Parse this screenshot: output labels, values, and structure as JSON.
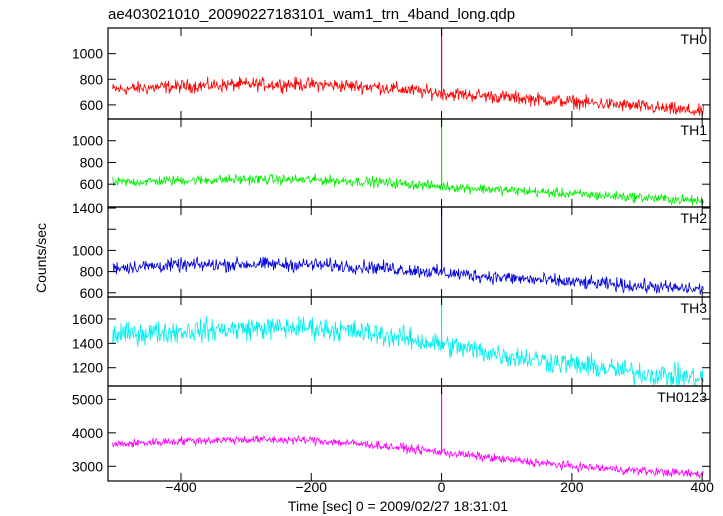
{
  "chart_data": {
    "type": "line",
    "title": "ae403021010_20090227183101_wam1_trn_4band_long.qdp",
    "xlabel": "Time [sec] 0 = 2009/02/27 18:31:01",
    "ylabel": "Counts/sec",
    "xlim": [
      -512,
      412
    ],
    "x_ticks": [
      -400,
      -200,
      0,
      200,
      400
    ],
    "x_tick_labels": [
      "−400",
      "−200",
      "0",
      "200",
      "400"
    ],
    "spike_x": 0,
    "panels": [
      {
        "name": "TH0",
        "color": "#ff0000",
        "ylim": [
          490,
          1200
        ],
        "y_ticks": [
          600,
          800,
          1000
        ],
        "x": [
          -505,
          -400,
          -300,
          -200,
          -100,
          0,
          100,
          200,
          300,
          400
        ],
        "y": [
          720,
          745,
          760,
          760,
          740,
          690,
          660,
          625,
          590,
          545
        ],
        "noise": 45,
        "spike_peak": 1200
      },
      {
        "name": "TH1",
        "color": "#00ee00",
        "ylim": [
          390,
          1200
        ],
        "y_ticks": [
          600,
          800,
          1000
        ],
        "x": [
          -505,
          -400,
          -300,
          -200,
          -100,
          0,
          100,
          200,
          300,
          400
        ],
        "y": [
          615,
          635,
          645,
          640,
          620,
          580,
          545,
          510,
          480,
          445
        ],
        "noise": 40,
        "spike_peak": 1200
      },
      {
        "name": "TH2",
        "color": "#0000dd",
        "ylim": [
          560,
          1410
        ],
        "y_ticks": [
          600,
          800,
          1000,
          1200,
          1400
        ],
        "y_tick_labels": [
          "600",
          "800",
          "1000",
          "",
          "1400"
        ],
        "x": [
          -505,
          -400,
          -300,
          -200,
          -100,
          0,
          100,
          200,
          300,
          400
        ],
        "y": [
          840,
          860,
          870,
          865,
          840,
          790,
          740,
          700,
          665,
          630
        ],
        "noise": 55,
        "spike_peak": 1410
      },
      {
        "name": "TH3",
        "color": "#00eeee",
        "ylim": [
          1050,
          1780
        ],
        "y_ticks": [
          1200,
          1400,
          1600
        ],
        "x": [
          -505,
          -400,
          -300,
          -200,
          -100,
          0,
          100,
          200,
          300,
          400
        ],
        "y": [
          1470,
          1500,
          1520,
          1530,
          1480,
          1390,
          1300,
          1230,
          1160,
          1110
        ],
        "noise": 80,
        "spike_peak": 1780
      },
      {
        "name": "TH0123",
        "color": "#ff00ff",
        "ylim": [
          2560,
          5400
        ],
        "y_ticks": [
          3000,
          4000,
          5000
        ],
        "x": [
          -505,
          -400,
          -300,
          -200,
          -100,
          0,
          100,
          200,
          300,
          400
        ],
        "y": [
          3650,
          3760,
          3800,
          3780,
          3630,
          3420,
          3200,
          3000,
          2870,
          2760
        ],
        "noise": 110,
        "spike_peak": 5400
      }
    ]
  }
}
